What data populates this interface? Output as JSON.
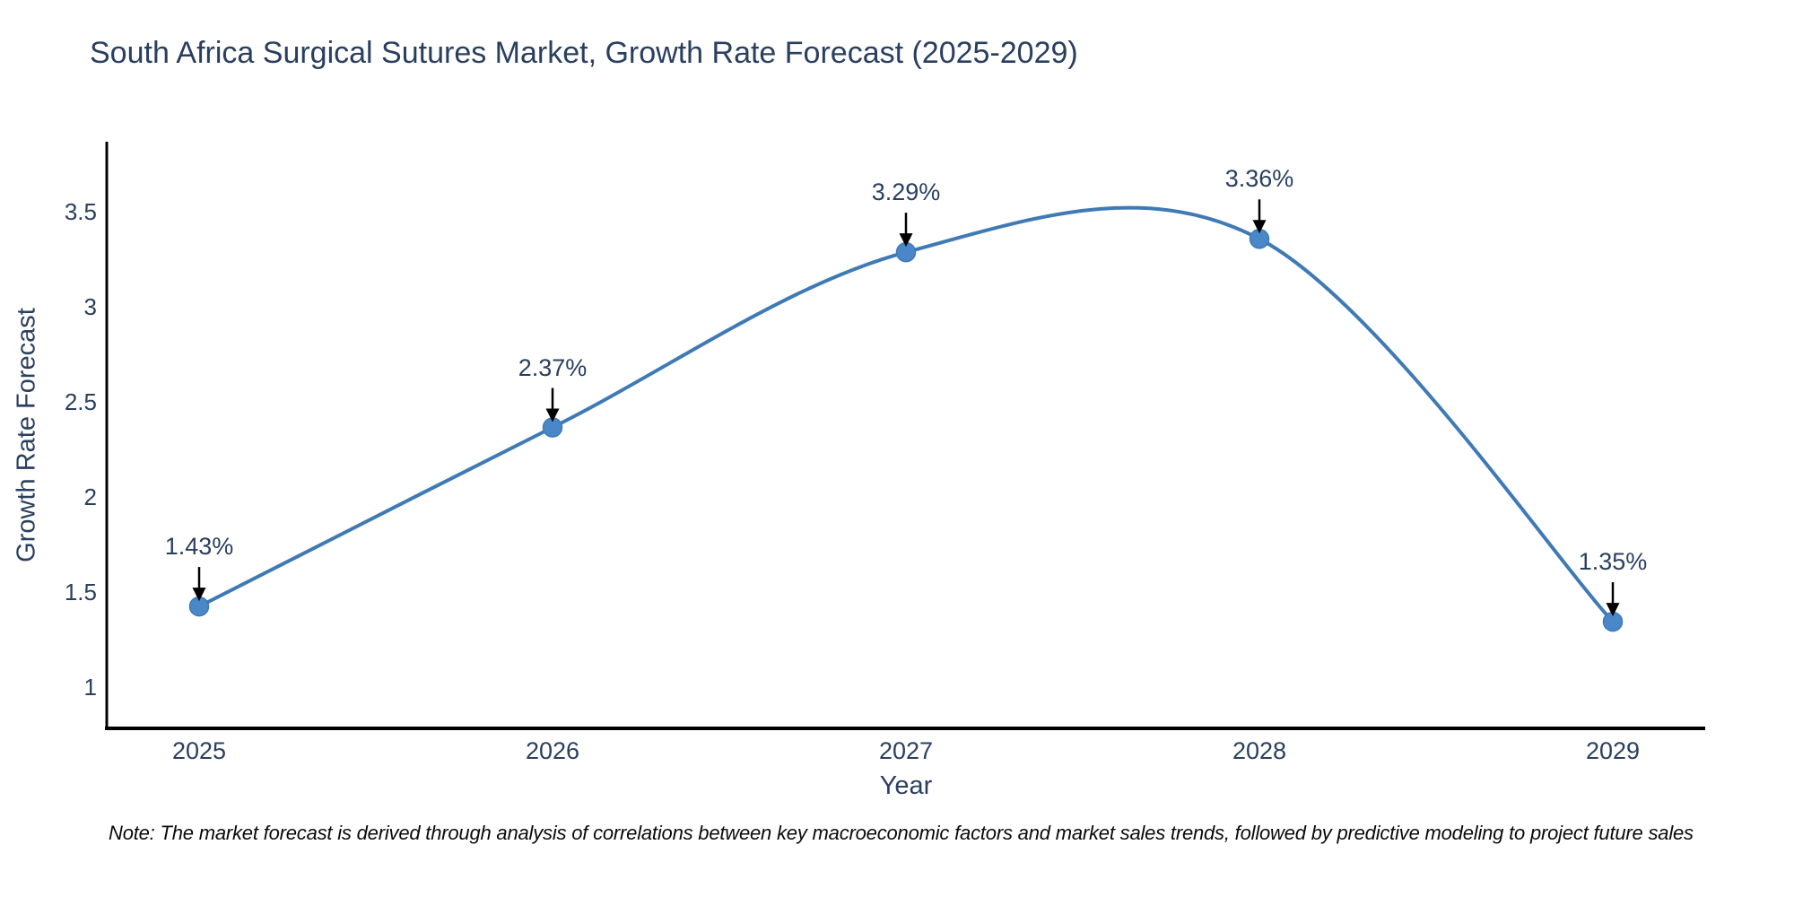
{
  "title": "South Africa Surgical Sutures Market, Growth Rate Forecast (2025-2029)",
  "note": "Note: The market forecast is derived through analysis of correlations between key macroeconomic factors and market sales trends, followed by predictive modeling to project future sales",
  "chart_data": {
    "type": "line",
    "line_shape": "spline",
    "categories": [
      "2025",
      "2026",
      "2027",
      "2028",
      "2029"
    ],
    "values": [
      1.43,
      2.37,
      3.29,
      3.36,
      1.35
    ],
    "point_labels": [
      "1.43%",
      "2.37%",
      "3.29%",
      "3.36%",
      "1.35%"
    ],
    "title": "South Africa Surgical Sutures Market, Growth Rate Forecast (2025-2029)",
    "xlabel": "Year",
    "ylabel": "Growth Rate Forecast",
    "yticks": [
      1,
      1.5,
      2,
      2.5,
      3,
      3.5
    ],
    "ylim": [
      0.79,
      3.87
    ],
    "grid": false,
    "legend": false,
    "colors": {
      "line": "#3f7ab5",
      "marker": "#4a87c8",
      "axis": "#000000",
      "text": "#2a3f5f",
      "annotation_arrow": "#000000"
    }
  }
}
